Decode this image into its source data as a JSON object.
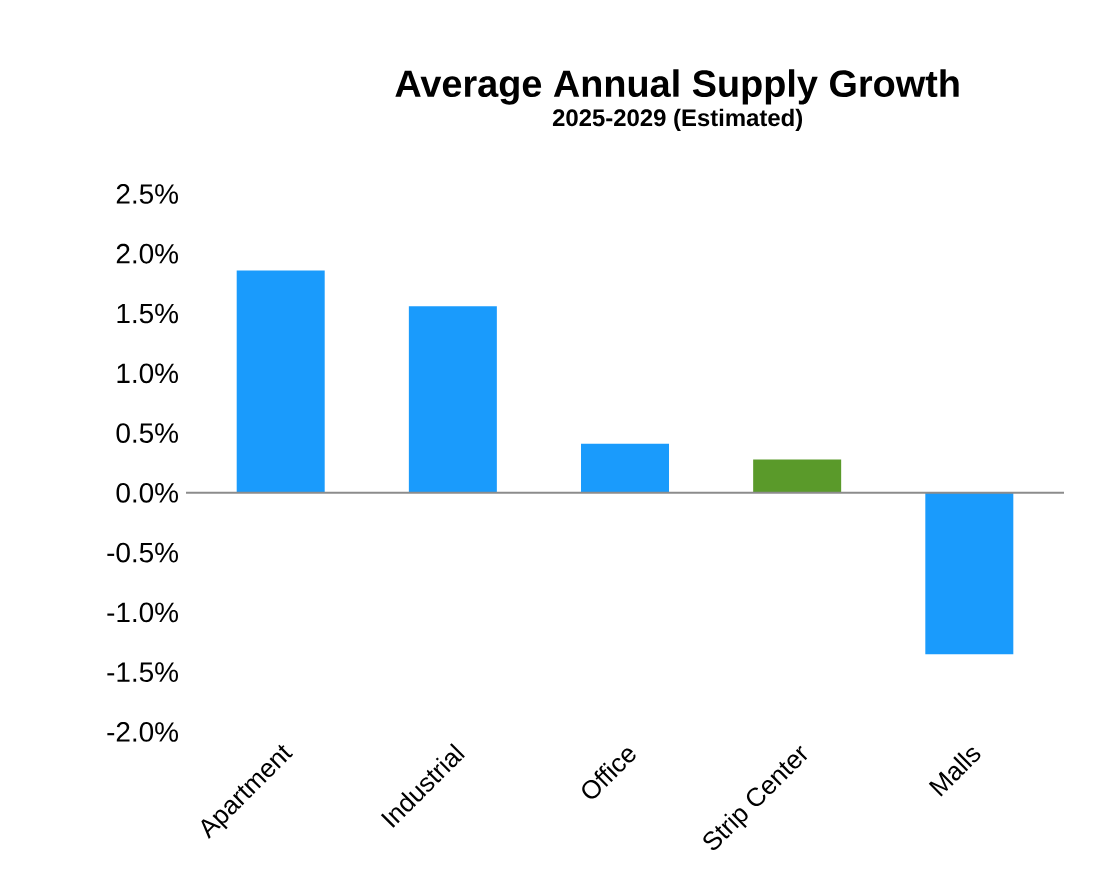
{
  "chart_data": {
    "type": "bar",
    "title": "Average Annual Supply Growth",
    "subtitle": "2025-2029 (Estimated)",
    "categories": [
      "Apartment",
      "Industrial",
      "Office",
      "Strip Center",
      "Malls"
    ],
    "values": [
      1.86,
      1.56,
      0.41,
      0.28,
      -1.35
    ],
    "colors": [
      "#1a9bfc",
      "#1a9bfc",
      "#1a9bfc",
      "#5a9a2a",
      "#1a9bfc"
    ],
    "ylim": [
      -2.0,
      2.5
    ],
    "yticks": [
      {
        "value": -2.0,
        "label": "-2.0%"
      },
      {
        "value": -1.5,
        "label": "-1.5%"
      },
      {
        "value": -1.0,
        "label": "-1.0%"
      },
      {
        "value": -0.5,
        "label": "-0.5%"
      },
      {
        "value": 0.0,
        "label": "0.0%"
      },
      {
        "value": 0.5,
        "label": "0.5%"
      },
      {
        "value": 1.0,
        "label": "1.0%"
      },
      {
        "value": 1.5,
        "label": "1.5%"
      },
      {
        "value": 2.0,
        "label": "2.0%"
      },
      {
        "value": 2.5,
        "label": "2.5%"
      }
    ],
    "relative": false
  }
}
